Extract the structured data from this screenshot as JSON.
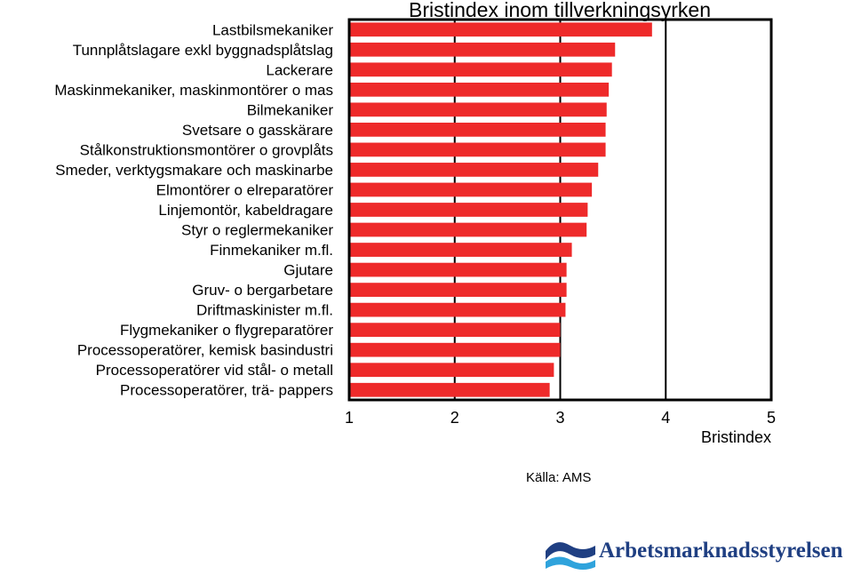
{
  "chart_data": {
    "type": "bar",
    "orientation": "horizontal",
    "title": "Bristindex inom tillverkningsyrken",
    "xlabel": "Bristindex",
    "ylabel": "",
    "xlim": [
      1,
      5
    ],
    "xticks": [
      "1",
      "2",
      "3",
      "4",
      "5"
    ],
    "grid": true,
    "bar_color": "#ee2a2a",
    "categories": [
      "Lastbilsmekaniker",
      "Tunnplåtslagare exkl byggnadsplåtslag",
      "Lackerare",
      "Maskinmekaniker, maskinmontörer o mas",
      "Bilmekaniker",
      "Svetsare o gasskärare",
      "Stålkonstruktionsmontörer o grovplåts",
      "Smeder, verktygsmakare och maskinarbe",
      "Elmontörer o elreparatörer",
      "Linjemontör, kabeldragare",
      "Styr o reglermekaniker",
      "Finmekaniker m.fl.",
      "Gjutare",
      "Gruv- o bergarbetare",
      "Driftmaskinister m.fl.",
      "Flygmekaniker o flygreparatörer",
      "Processoperatörer, kemisk basindustri",
      "Processoperatörer vid stål- o metall",
      "Processoperatörer, trä- pappers"
    ],
    "values": [
      3.87,
      3.52,
      3.49,
      3.46,
      3.44,
      3.43,
      3.43,
      3.36,
      3.3,
      3.26,
      3.25,
      3.11,
      3.06,
      3.06,
      3.05,
      3.0,
      3.0,
      2.94,
      2.9
    ]
  },
  "source": "Källa: AMS",
  "logo_text": "Arbetsmarknadsstyrelsen"
}
